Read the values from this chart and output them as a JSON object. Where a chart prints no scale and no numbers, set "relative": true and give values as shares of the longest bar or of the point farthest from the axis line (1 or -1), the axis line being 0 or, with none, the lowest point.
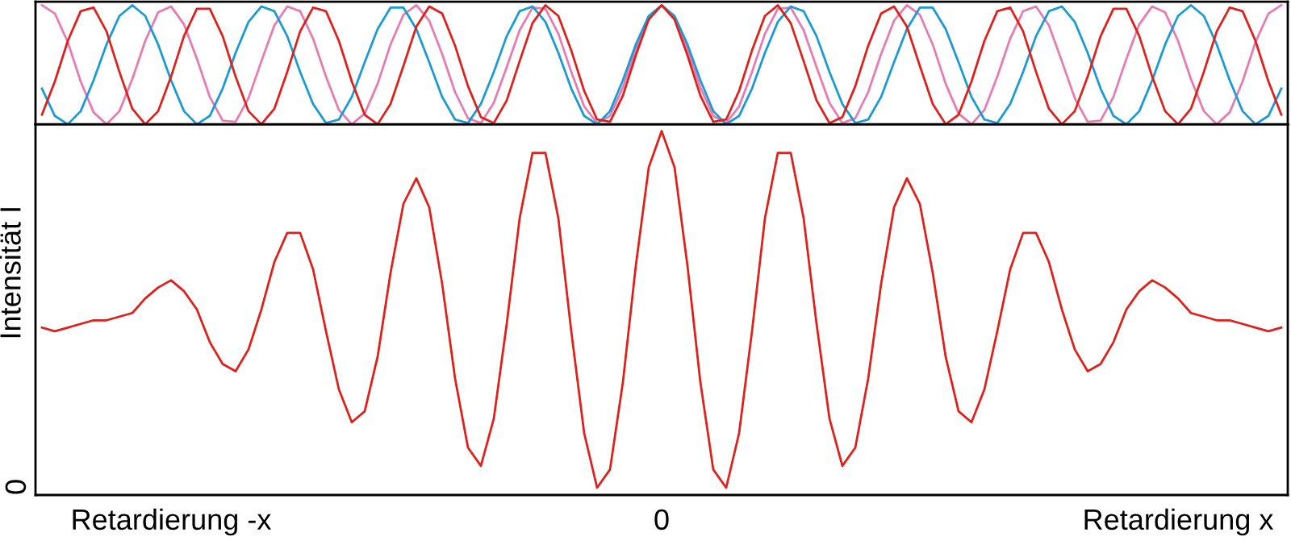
{
  "chart_data": [
    {
      "type": "line",
      "relative": true,
      "tick_labels": false,
      "categories": [
        null,
        null,
        null,
        null,
        null,
        null,
        null,
        null,
        null,
        null,
        null,
        null,
        null,
        null,
        null,
        null,
        null,
        null,
        null,
        null,
        null,
        null,
        null,
        null,
        null,
        null,
        null,
        null,
        null,
        null,
        null,
        null,
        null,
        null,
        null,
        null,
        null,
        null,
        null,
        null,
        null,
        null,
        null,
        null,
        null,
        null,
        null,
        null,
        null,
        null,
        null,
        null,
        null,
        null,
        null,
        null,
        null,
        null,
        null,
        null,
        null,
        null,
        null,
        null,
        null,
        null,
        null,
        null,
        null,
        null,
        null,
        null,
        null,
        null,
        null,
        null,
        null,
        null,
        null,
        null,
        null,
        null,
        null,
        null,
        null,
        null,
        null,
        null,
        null,
        null,
        null,
        null,
        null,
        null,
        null,
        null,
        null
      ],
      "series": [
        {
          "color": "#e87bb0",
          "values": [
            1,
            0.93,
            0.69,
            0.36,
            0.1,
            0,
            0.11,
            0.38,
            0.7,
            0.94,
            0.99,
            0.84,
            0.55,
            0.23,
            0.03,
            0.02,
            0.22,
            0.53,
            0.83,
            0.99,
            0.95,
            0.72,
            0.4,
            0.12,
            0,
            0.09,
            0.34,
            0.67,
            0.92,
            1,
            0.87,
            0.59,
            0.27,
            0.05,
            0.01,
            0.18,
            0.48,
            0.79,
            0.98,
            0.97,
            0.76,
            0.44,
            0.15,
            0.01,
            0.07,
            0.31,
            0.63,
            0.9,
            1,
            0.9,
            0.63,
            0.31,
            0.07,
            0.01,
            0.15,
            0.44,
            0.76,
            0.97,
            0.98,
            0.79,
            0.48,
            0.18,
            0.01,
            0.05,
            0.27,
            0.59,
            0.87,
            1,
            0.92,
            0.67,
            0.34,
            0.09,
            0,
            0.12,
            0.4,
            0.72,
            0.95,
            0.99,
            0.83,
            0.53,
            0.22,
            0.02,
            0.03,
            0.23,
            0.55,
            0.84,
            0.99,
            0.94,
            0.7,
            0.38,
            0.11,
            0,
            0.1,
            0.36,
            0.69,
            0.93,
            1
          ]
        },
        {
          "color": "#1a9ad6",
          "values": [
            0.3,
            0.07,
            0,
            0.11,
            0.37,
            0.67,
            0.91,
            1,
            0.91,
            0.67,
            0.37,
            0.11,
            0,
            0.07,
            0.3,
            0.6,
            0.86,
            0.99,
            0.95,
            0.74,
            0.44,
            0.17,
            0.01,
            0.04,
            0.23,
            0.52,
            0.8,
            0.98,
            0.98,
            0.8,
            0.52,
            0.23,
            0.04,
            0.01,
            0.17,
            0.44,
            0.74,
            0.95,
            0.99,
            0.86,
            0.6,
            0.3,
            0.07,
            0,
            0.11,
            0.37,
            0.67,
            0.91,
            1,
            0.91,
            0.67,
            0.37,
            0.11,
            0,
            0.07,
            0.3,
            0.6,
            0.86,
            0.99,
            0.95,
            0.74,
            0.44,
            0.17,
            0.01,
            0.04,
            0.23,
            0.52,
            0.8,
            0.98,
            0.98,
            0.8,
            0.52,
            0.23,
            0.04,
            0.01,
            0.17,
            0.44,
            0.74,
            0.95,
            0.99,
            0.86,
            0.6,
            0.3,
            0.07,
            0,
            0.11,
            0.37,
            0.67,
            0.91,
            1,
            0.91,
            0.67,
            0.37,
            0.11,
            0,
            0.07,
            0.3
          ]
        },
        {
          "color": "#e0201b",
          "values": [
            0.08,
            0.36,
            0.7,
            0.95,
            0.98,
            0.78,
            0.44,
            0.13,
            0,
            0.11,
            0.4,
            0.74,
            0.97,
            0.97,
            0.74,
            0.4,
            0.11,
            0,
            0.13,
            0.44,
            0.78,
            0.98,
            0.95,
            0.7,
            0.36,
            0.08,
            0,
            0.17,
            0.49,
            0.82,
            0.99,
            0.93,
            0.66,
            0.32,
            0.06,
            0.01,
            0.2,
            0.53,
            0.85,
            1,
            0.91,
            0.62,
            0.28,
            0.04,
            0.02,
            0.24,
            0.58,
            0.88,
            1,
            0.88,
            0.58,
            0.24,
            0.02,
            0.04,
            0.28,
            0.62,
            0.91,
            1,
            0.85,
            0.53,
            0.2,
            0.01,
            0.06,
            0.32,
            0.66,
            0.93,
            0.99,
            0.82,
            0.49,
            0.17,
            0,
            0.08,
            0.36,
            0.7,
            0.95,
            0.98,
            0.78,
            0.44,
            0.13,
            0,
            0.11,
            0.4,
            0.74,
            0.97,
            0.97,
            0.74,
            0.4,
            0.11,
            0,
            0.13,
            0.44,
            0.78,
            0.98,
            0.95,
            0.7,
            0.36,
            0.08
          ]
        }
      ]
    },
    {
      "type": "line",
      "relative": true,
      "tick_labels": "x",
      "ylabel": "Intensität I",
      "annotations": [
        "0"
      ],
      "categories": [
        null,
        null,
        null,
        null,
        null,
        null,
        null,
        null,
        null,
        null,
        "Retardierung -x",
        null,
        null,
        null,
        null,
        null,
        null,
        null,
        null,
        null,
        null,
        null,
        null,
        null,
        null,
        null,
        null,
        null,
        null,
        null,
        null,
        null,
        null,
        null,
        null,
        null,
        null,
        null,
        null,
        null,
        null,
        null,
        null,
        null,
        null,
        null,
        null,
        null,
        "0",
        null,
        null,
        null,
        null,
        null,
        null,
        null,
        null,
        null,
        null,
        null,
        null,
        null,
        null,
        null,
        null,
        null,
        null,
        null,
        null,
        null,
        null,
        null,
        null,
        null,
        null,
        null,
        null,
        null,
        null,
        null,
        null,
        null,
        null,
        null,
        null,
        null,
        null,
        null,
        "Retardierung x",
        null,
        null,
        null,
        null,
        null,
        null,
        null,
        null
      ],
      "series": [
        {
          "color": "#e0201b",
          "values": [
            0.46,
            0.45,
            0.46,
            0.47,
            0.48,
            0.48,
            0.49,
            0.5,
            0.54,
            0.57,
            0.59,
            0.56,
            0.51,
            0.42,
            0.36,
            0.34,
            0.4,
            0.51,
            0.64,
            0.72,
            0.72,
            0.62,
            0.45,
            0.29,
            0.2,
            0.23,
            0.38,
            0.61,
            0.8,
            0.87,
            0.79,
            0.58,
            0.32,
            0.13,
            0.08,
            0.21,
            0.47,
            0.76,
            0.94,
            0.94,
            0.76,
            0.45,
            0.17,
            0.02,
            0.07,
            0.31,
            0.63,
            0.9,
            1,
            0.9,
            0.63,
            0.31,
            0.07,
            0.02,
            0.17,
            0.45,
            0.76,
            0.94,
            0.94,
            0.76,
            0.47,
            0.21,
            0.08,
            0.13,
            0.32,
            0.58,
            0.79,
            0.87,
            0.8,
            0.61,
            0.38,
            0.23,
            0.2,
            0.29,
            0.45,
            0.62,
            0.72,
            0.72,
            0.64,
            0.51,
            0.4,
            0.34,
            0.36,
            0.42,
            0.51,
            0.56,
            0.59,
            0.57,
            0.54,
            0.5,
            0.49,
            0.48,
            0.48,
            0.47,
            0.46,
            0.45,
            0.46
          ]
        }
      ]
    }
  ]
}
